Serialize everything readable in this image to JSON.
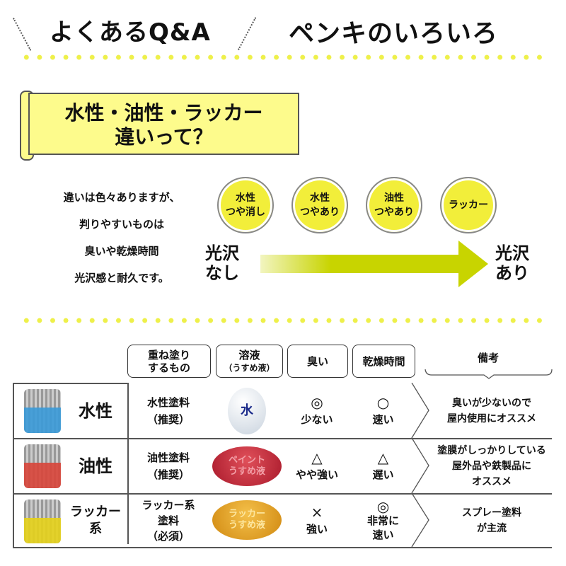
{
  "header": {
    "left_title": "よくあるQ&A",
    "right_title": "ペンキのいろいろ"
  },
  "banner": {
    "line1": "水性・油性・ラッカー",
    "line2": "違いって？"
  },
  "intro": [
    "違いは色々ありますが、",
    "判りやすいものは",
    "臭いや乾燥時間",
    "光沢感と耐久です。"
  ],
  "gloss": {
    "low_label": [
      "光沢",
      "なし"
    ],
    "high_label": [
      "光沢",
      "あり"
    ],
    "types": [
      [
        "水性",
        "つや消し"
      ],
      [
        "水性",
        "つやあり"
      ],
      [
        "油性",
        "つやあり"
      ],
      [
        "ラッカー"
      ]
    ],
    "arrow_color": "#c8d400",
    "circle_color": "#f2ee3a"
  },
  "table": {
    "headers": [
      [
        "重ね塗り",
        "するもの"
      ],
      [
        "溶液",
        "（うすめ液）"
      ],
      [
        "臭い"
      ],
      [
        "乾燥時間"
      ],
      [
        "備考"
      ]
    ],
    "rows": [
      {
        "name": [
          "水性"
        ],
        "recoat": [
          "水性塗料",
          "（推奨）"
        ],
        "solvent": [
          "水"
        ],
        "smell_symbol": "◎",
        "smell": [
          "少ない"
        ],
        "dry_symbol": "○",
        "dry": [
          "速い"
        ],
        "note": [
          "臭いが少ないので",
          "屋内使用にオススメ"
        ],
        "liquid_color": "#3a9ad8",
        "drop_color": "#e8eef4"
      },
      {
        "name": [
          "油性"
        ],
        "recoat": [
          "油性塗料",
          "（推奨）"
        ],
        "solvent": [
          "ペイント",
          "うすめ液"
        ],
        "smell_symbol": "△",
        "smell": [
          "やや強い"
        ],
        "dry_symbol": "△",
        "dry": [
          "遅い"
        ],
        "note": [
          "塗膜がしっかりしている",
          "屋外品や鉄製品に",
          "オススメ"
        ],
        "liquid_color": "#d8453a",
        "drop_color": "#c8283a"
      },
      {
        "name": [
          "ラッカー",
          "系"
        ],
        "recoat": [
          "ラッカー系",
          "塗料",
          "（必須）"
        ],
        "solvent": [
          "ラッカー",
          "うすめ液"
        ],
        "smell_symbol": "×",
        "smell": [
          "強い"
        ],
        "dry_symbol": "◎",
        "dry": [
          "非常に",
          "速い"
        ],
        "note": [
          "スプレー塗料",
          "が主流"
        ],
        "liquid_color": "#e6d21a",
        "drop_color": "#e8a020"
      }
    ]
  }
}
